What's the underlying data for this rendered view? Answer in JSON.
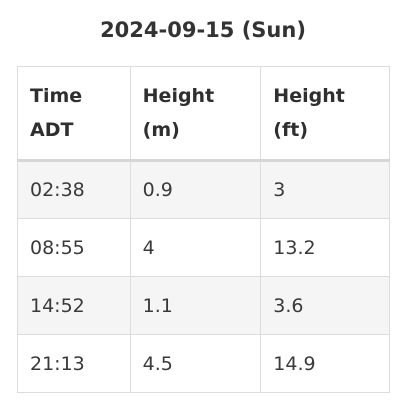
{
  "title": "2024-09-15 (Sun)",
  "table": {
    "headers": [
      [
        "Time",
        "ADT"
      ],
      [
        "Height",
        "(m)"
      ],
      [
        "Height",
        "(ft)"
      ]
    ],
    "rows": [
      [
        "02:38",
        "0.9",
        "3"
      ],
      [
        "08:55",
        "4",
        "13.2"
      ],
      [
        "14:52",
        "1.1",
        "3.6"
      ],
      [
        "21:13",
        "4.5",
        "14.9"
      ]
    ]
  },
  "colors": {
    "stripe": "#f5f5f5",
    "border": "#dcdcdc",
    "text": "#2b2b2b"
  }
}
